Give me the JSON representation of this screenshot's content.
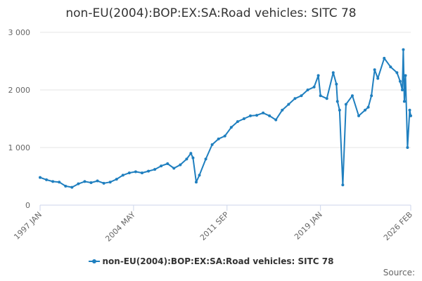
{
  "chart_data": {
    "type": "line",
    "title": "non-EU(2004):BOP:EX:SA:Road vehicles: SITC 78",
    "xlabel": "",
    "ylabel": "",
    "ylim": [
      0,
      3000
    ],
    "y_ticks": [
      0,
      1000,
      2000,
      3000
    ],
    "y_tick_labels": [
      "0",
      "1 000",
      "2 000",
      "3 000"
    ],
    "x_tick_labels": [
      "1997 JAN",
      "2004 MAY",
      "2011 SEP",
      "2019 JAN",
      "2026 FEB"
    ],
    "x_tick_dates": [
      1997.0,
      2004.333,
      2011.667,
      2019.0,
      2026.083
    ],
    "x_range": [
      1997.0,
      2026.083
    ],
    "grid": true,
    "legend": "bottom-center",
    "color": "#1f7fbf",
    "series": [
      {
        "name": "non-EU(2004):BOP:EX:SA:Road vehicles: SITC 78",
        "x": [
          1997.0,
          1997.5,
          1998.0,
          1998.5,
          1999.0,
          1999.5,
          2000.0,
          2000.5,
          2001.0,
          2001.5,
          2002.0,
          2002.5,
          2003.0,
          2003.5,
          2004.0,
          2004.5,
          2005.0,
          2005.5,
          2006.0,
          2006.5,
          2007.0,
          2007.5,
          2008.0,
          2008.5,
          2008.83,
          2009.0,
          2009.25,
          2009.5,
          2010.0,
          2010.5,
          2011.0,
          2011.5,
          2012.0,
          2012.5,
          2013.0,
          2013.5,
          2014.0,
          2014.5,
          2015.0,
          2015.5,
          2016.0,
          2016.5,
          2017.0,
          2017.5,
          2018.0,
          2018.5,
          2018.83,
          2019.0,
          2019.5,
          2020.0,
          2020.25,
          2020.33,
          2020.5,
          2020.75,
          2021.0,
          2021.5,
          2022.0,
          2022.5,
          2022.75,
          2023.0,
          2023.25,
          2023.5,
          2024.0,
          2024.5,
          2025.0,
          2025.25,
          2025.42,
          2025.5,
          2025.58,
          2025.67,
          2025.83,
          2026.0,
          2026.083
        ],
        "values": [
          480,
          440,
          410,
          400,
          330,
          310,
          370,
          410,
          390,
          420,
          380,
          400,
          450,
          520,
          560,
          580,
          560,
          590,
          620,
          680,
          720,
          640,
          700,
          800,
          900,
          820,
          400,
          520,
          800,
          1050,
          1150,
          1200,
          1350,
          1450,
          1500,
          1550,
          1560,
          1600,
          1550,
          1480,
          1650,
          1750,
          1850,
          1900,
          2000,
          2050,
          2250,
          1900,
          1850,
          2300,
          2100,
          1800,
          1650,
          350,
          1750,
          1900,
          1550,
          1650,
          1700,
          1900,
          2350,
          2200,
          2550,
          2400,
          2300,
          2150,
          2000,
          2700,
          1800,
          2250,
          1000,
          1650,
          1550
        ]
      }
    ]
  },
  "legend": {
    "label": "non-EU(2004):BOP:EX:SA:Road vehicles: SITC 78"
  },
  "credits": {
    "text": "Source:"
  }
}
